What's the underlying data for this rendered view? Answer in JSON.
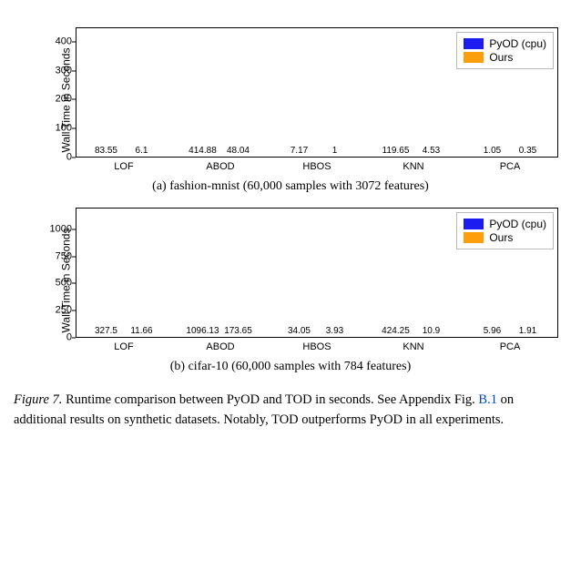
{
  "colors": {
    "series_a": "#1c1cf0",
    "series_b": "#ff9e0c",
    "legend_border": "#bbbbbb",
    "axis": "#000000",
    "ref_link": "#0047c2"
  },
  "legend": {
    "a_label": "PyOD (cpu)",
    "b_label": "Ours"
  },
  "chart_a": {
    "ylabel": "Wall Time in Seconds",
    "ylim": [
      0,
      450
    ],
    "yticks": [
      0,
      100,
      200,
      300,
      400
    ],
    "categories": [
      "LOF",
      "ABOD",
      "HBOS",
      "KNN",
      "PCA"
    ],
    "values_a": [
      83.55,
      414.88,
      7.17,
      119.65,
      1.05
    ],
    "values_b": [
      6.1,
      48.04,
      1.0,
      4.53,
      0.35
    ],
    "subcaption": "(a) fashion-mnist (60,000 samples with 3072 features)"
  },
  "chart_b": {
    "ylabel": "Wall Time in Seconds",
    "ylim": [
      0,
      1200
    ],
    "yticks": [
      0,
      250,
      500,
      750,
      1000
    ],
    "categories": [
      "LOF",
      "ABOD",
      "HBOS",
      "KNN",
      "PCA"
    ],
    "values_a": [
      327.5,
      1096.13,
      34.05,
      424.25,
      5.96
    ],
    "values_b": [
      11.66,
      173.65,
      3.93,
      10.9,
      1.91
    ],
    "subcaption": "(b) cifar-10 (60,000 samples with 784 features)"
  },
  "caption": {
    "prefix": "Figure 7.",
    "text_1": " Runtime comparison between PyOD and TOD in seconds. See Appendix Fig. ",
    "ref": "B.1",
    "text_2": " on additional results on synthetic datasets. Notably, TOD outperforms PyOD in all experiments."
  }
}
